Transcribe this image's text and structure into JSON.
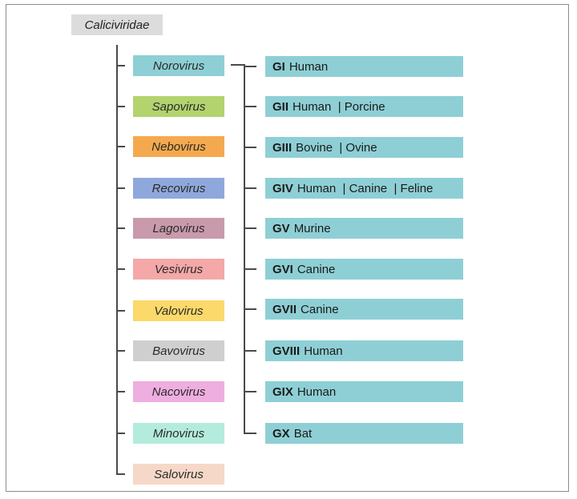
{
  "root": {
    "label": "Caliciviridae",
    "color": "#dcdcdc"
  },
  "genera": [
    {
      "name": "Norovirus",
      "color": "#8ecfd5"
    },
    {
      "name": "Sapovirus",
      "color": "#b2d36e"
    },
    {
      "name": "Nebovirus",
      "color": "#f5a94f"
    },
    {
      "name": "Recovirus",
      "color": "#8fa8dc"
    },
    {
      "name": "Lagovirus",
      "color": "#c99aab"
    },
    {
      "name": "Vesivirus",
      "color": "#f4a8a8"
    },
    {
      "name": "Valovirus",
      "color": "#fbd96a"
    },
    {
      "name": "Bavovirus",
      "color": "#cfcfcf"
    },
    {
      "name": "Nacovirus",
      "color": "#eeaee0"
    },
    {
      "name": "Minovirus",
      "color": "#b3ebdc"
    },
    {
      "name": "Salovirus",
      "color": "#f6d8c8"
    }
  ],
  "genogroups": [
    {
      "code": "GI",
      "hosts": "Human"
    },
    {
      "code": "GII",
      "hosts": "Human  | Porcine"
    },
    {
      "code": "GIII",
      "hosts": "Bovine  | Ovine"
    },
    {
      "code": "GIV",
      "hosts": "Human  | Canine  | Feline"
    },
    {
      "code": "GV",
      "hosts": "Murine"
    },
    {
      "code": "GVI",
      "hosts": "Canine"
    },
    {
      "code": "GVII",
      "hosts": "Canine"
    },
    {
      "code": "GVIII",
      "hosts": "Human"
    },
    {
      "code": "GIX",
      "hosts": "Human"
    },
    {
      "code": "GX",
      "hosts": "Bat"
    }
  ],
  "genogroup_color": "#8ecfd5"
}
